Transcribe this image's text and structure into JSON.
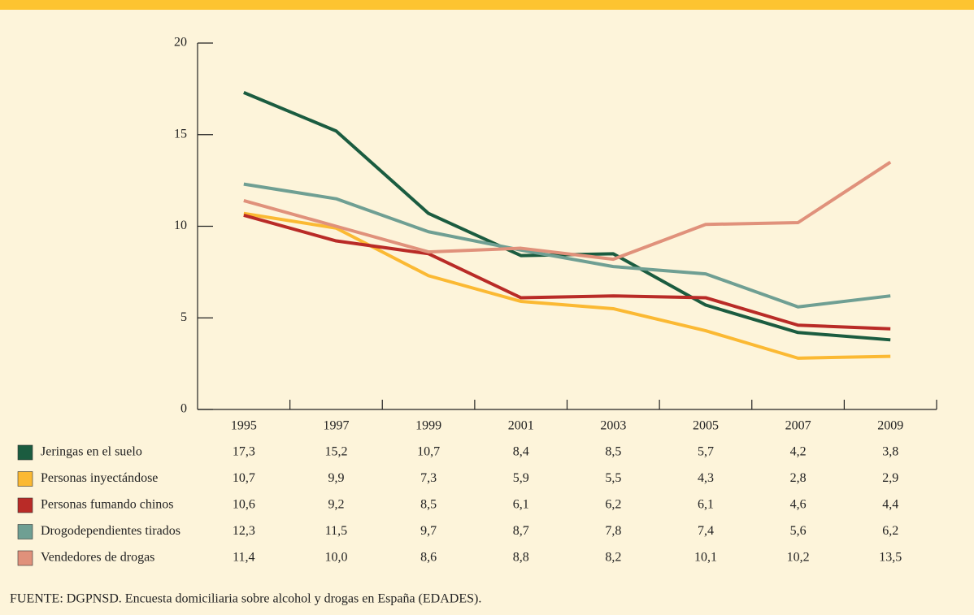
{
  "chart_data": {
    "type": "line",
    "categories": [
      "1995",
      "1997",
      "1999",
      "2001",
      "2003",
      "2005",
      "2007",
      "2009"
    ],
    "series": [
      {
        "name": "Jeringas en el suelo",
        "color": "#1b5c40",
        "values": [
          17.3,
          15.2,
          10.7,
          8.4,
          8.5,
          5.7,
          4.2,
          3.8
        ],
        "value_labels": [
          "17,3",
          "15,2",
          "10,7",
          "8,4",
          "8,5",
          "5,7",
          "4,2",
          "3,8"
        ]
      },
      {
        "name": "Personas inyectándose",
        "color": "#fbb933",
        "values": [
          10.7,
          9.9,
          7.3,
          5.9,
          5.5,
          4.3,
          2.8,
          2.9
        ],
        "value_labels": [
          "10,7",
          "9,9",
          "7,3",
          "5,9",
          "5,5",
          "4,3",
          "2,8",
          "2,9"
        ]
      },
      {
        "name": "Personas fumando chinos",
        "color": "#b92b27",
        "values": [
          10.6,
          9.2,
          8.5,
          6.1,
          6.2,
          6.1,
          4.6,
          4.4
        ],
        "value_labels": [
          "10,6",
          "9,2",
          "8,5",
          "6,1",
          "6,2",
          "6,1",
          "4,6",
          "4,4"
        ]
      },
      {
        "name": "Drogodependientes tirados",
        "color": "#6f9f93",
        "values": [
          12.3,
          11.5,
          9.7,
          8.7,
          7.8,
          7.4,
          5.6,
          6.2
        ],
        "value_labels": [
          "12,3",
          "11,5",
          "9,7",
          "8,7",
          "7,8",
          "7,4",
          "5,6",
          "6,2"
        ]
      },
      {
        "name": "Vendedores de drogas",
        "color": "#e0917b",
        "values": [
          11.4,
          10.0,
          8.6,
          8.8,
          8.2,
          10.1,
          10.2,
          13.5
        ],
        "value_labels": [
          "11,4",
          "10,0",
          "8,6",
          "8,8",
          "8,2",
          "10,1",
          "10,2",
          "13,5"
        ]
      }
    ],
    "ylim": [
      0,
      20
    ],
    "yticks": [
      0,
      5,
      10,
      15,
      20
    ],
    "source": "FUENTE: DGPNSD. Encuesta domiciliaria sobre alcohol y drogas en España (EDADES)."
  }
}
